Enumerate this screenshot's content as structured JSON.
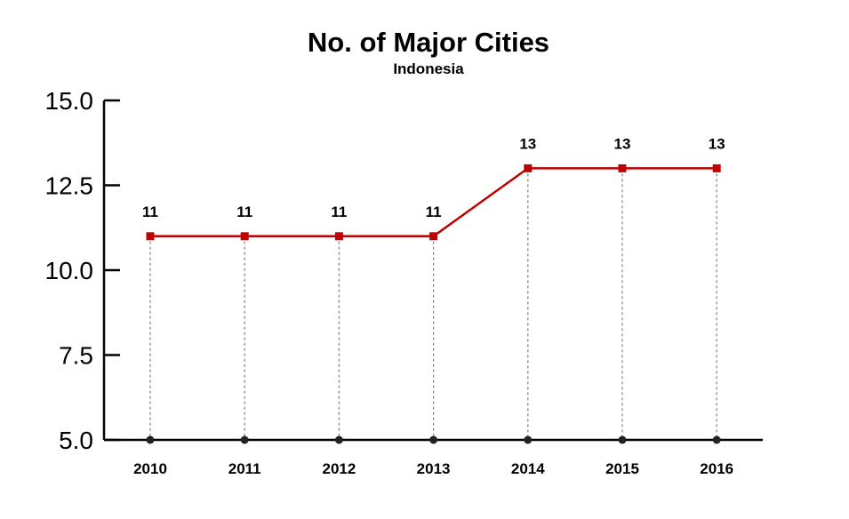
{
  "chart_data": {
    "type": "line",
    "title": "No. of Major Cities",
    "subtitle": "Indonesia",
    "xlabel": "",
    "ylabel": "",
    "categories": [
      "2010",
      "2011",
      "2012",
      "2013",
      "2014",
      "2015",
      "2016"
    ],
    "series": [
      {
        "values": [
          11,
          11,
          11,
          11,
          13,
          13,
          13
        ],
        "data_labels": [
          "11",
          "11",
          "11",
          "11",
          "13",
          "13",
          "13"
        ],
        "color": "#c00000"
      }
    ],
    "ylim": [
      5,
      15
    ],
    "yticks": [
      5.0,
      7.5,
      10.0,
      12.5,
      15.0
    ],
    "ytick_labels": [
      "5.0",
      "7.5",
      "10.0",
      "12.5",
      "15.0"
    ],
    "grid": false,
    "drop_lines": true,
    "legend": "none",
    "colors": {
      "line": "#c00000",
      "marker": "#c00000",
      "axis": "#000000",
      "drop_line": "#888888",
      "base_dot": "#222222"
    }
  }
}
